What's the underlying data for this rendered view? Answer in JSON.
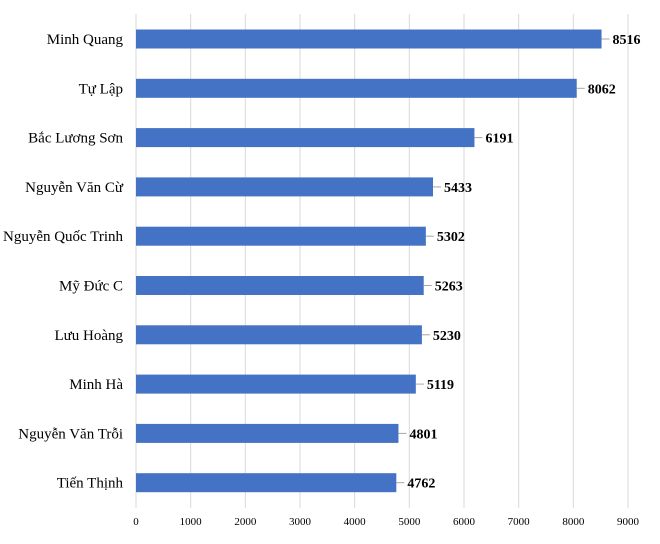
{
  "chart_data": {
    "type": "bar",
    "orientation": "horizontal",
    "categories": [
      "Minh Quang",
      "Tự Lập",
      "Bắc Lương Sơn",
      "Nguyễn Văn Cừ",
      "Nguyễn Quốc Trinh",
      "Mỹ Đức C",
      "Lưu Hoàng",
      "Minh Hà",
      "Nguyễn Văn Trỗi",
      "Tiến Thịnh"
    ],
    "values": [
      8516,
      8062,
      6191,
      5433,
      5302,
      5263,
      5230,
      5119,
      4801,
      4762
    ],
    "data_labels": [
      "8516",
      "8062",
      "6191",
      "5433",
      "5302",
      "5263",
      "5230",
      "5119",
      "4801",
      "4762"
    ],
    "title": "",
    "xlabel": "",
    "ylabel": "",
    "xlim": [
      0,
      9000
    ],
    "x_ticks": [
      "0",
      "1000",
      "2000",
      "3000",
      "4000",
      "5000",
      "6000",
      "7000",
      "8000",
      "9000"
    ],
    "grid": "vertical",
    "legend": "none",
    "colors": {
      "bar": "#4472c4",
      "grid": "#d9d9d9",
      "leader": "#a6a6a6",
      "text": "#000000"
    }
  }
}
